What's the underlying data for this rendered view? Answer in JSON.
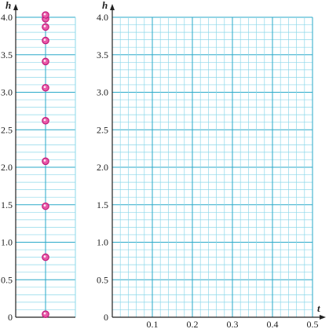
{
  "colors": {
    "grid_minor": "#8ed8ea",
    "grid_major": "#2aa9c9",
    "axis": "#222222",
    "point_fill": "#e85aa8",
    "point_stroke": "#c2187a",
    "text": "#222222"
  },
  "chart_data": [
    {
      "type": "scatter",
      "title": "",
      "xlabel": "",
      "ylabel": "h",
      "ylim": [
        0,
        4.0
      ],
      "yticks": [
        "0",
        "0.5",
        "1.0",
        "1.5",
        "2.0",
        "2.5",
        "3.0",
        "3.5",
        "4.0"
      ],
      "grid": true,
      "series": [
        {
          "values": [
            0.04,
            0.8,
            1.48,
            2.08,
            2.62,
            3.06,
            3.41,
            3.69,
            3.87,
            3.98,
            4.03
          ]
        }
      ]
    },
    {
      "type": "line",
      "title": "",
      "xlabel": "t",
      "ylabel": "h",
      "xlim": [
        0,
        0.5
      ],
      "ylim": [
        0,
        4.0
      ],
      "xticks": [
        "0.1",
        "0.2",
        "0.3",
        "0.4",
        "0.5"
      ],
      "yticks": [
        "0",
        "0.5",
        "1.0",
        "1.5",
        "2.0",
        "2.5",
        "3.0",
        "3.5",
        "4.0"
      ],
      "grid": true,
      "series": []
    }
  ]
}
